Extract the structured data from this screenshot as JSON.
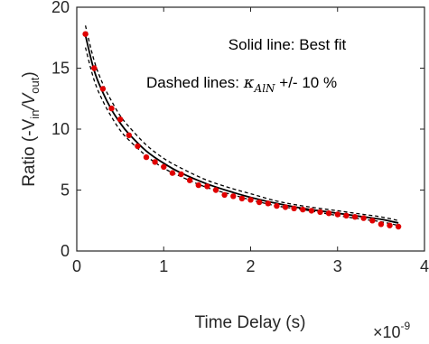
{
  "chart_data": {
    "type": "scatter",
    "xlabel": "Time Delay (s)",
    "ylabel_parts": {
      "prefix": "Ratio (-V",
      "sub1": "in",
      "mid": "/V",
      "sub2": "out",
      "suffix": ")"
    },
    "x_exponent_label": "×10",
    "x_exponent_power": "-9",
    "xlim": [
      0,
      4
    ],
    "ylim": [
      0,
      20
    ],
    "xticks": [
      "0",
      "1",
      "2",
      "3",
      "4"
    ],
    "yticks": [
      "0",
      "5",
      "10",
      "15",
      "20"
    ],
    "annotations": {
      "line1": "Solid line: Best fit",
      "line2_prefix": "Dashed lines: ",
      "kappa_symbol": "κ",
      "kappa_sub": "AlN",
      "line2_suffix": " +/- 10 %"
    },
    "colors": {
      "points": "#e00000",
      "fit": "#000000",
      "dashed": "#000000",
      "axis": "#262626"
    },
    "series": [
      {
        "role": "measured",
        "x": [
          0.1,
          0.2,
          0.3,
          0.4,
          0.5,
          0.6,
          0.7,
          0.8,
          0.9,
          1.0,
          1.1,
          1.2,
          1.3,
          1.4,
          1.5,
          1.6,
          1.7,
          1.8,
          1.9,
          2.0,
          2.1,
          2.2,
          2.3,
          2.4,
          2.5,
          2.6,
          2.7,
          2.8,
          2.9,
          3.0,
          3.1,
          3.2,
          3.3,
          3.4,
          3.5,
          3.6,
          3.7
        ],
        "values": [
          17.8,
          15.0,
          13.3,
          11.7,
          10.8,
          9.5,
          8.6,
          7.7,
          7.3,
          6.9,
          6.4,
          6.3,
          5.8,
          5.4,
          5.3,
          5.0,
          4.6,
          4.5,
          4.3,
          4.2,
          4.0,
          3.9,
          3.7,
          3.6,
          3.5,
          3.4,
          3.3,
          3.2,
          3.1,
          3.0,
          2.9,
          2.8,
          2.7,
          2.5,
          2.2,
          2.1,
          2.0
        ]
      },
      {
        "role": "best-fit",
        "x": [
          0.1,
          0.2,
          0.3,
          0.4,
          0.5,
          0.6,
          0.8,
          1.0,
          1.2,
          1.5,
          1.8,
          2.0,
          2.3,
          2.6,
          3.0,
          3.3,
          3.5,
          3.7
        ],
        "values": [
          17.7,
          14.8,
          13.0,
          11.6,
          10.5,
          9.6,
          8.2,
          7.2,
          6.4,
          5.5,
          4.8,
          4.4,
          3.9,
          3.5,
          3.1,
          2.8,
          2.6,
          2.3
        ]
      },
      {
        "role": "upper-bound",
        "x": [
          0.1,
          0.2,
          0.3,
          0.4,
          0.5,
          0.6,
          0.8,
          1.0,
          1.2,
          1.5,
          1.8,
          2.0,
          2.3,
          2.6,
          3.0,
          3.3,
          3.5,
          3.7
        ],
        "values": [
          18.5,
          15.6,
          13.7,
          12.3,
          11.1,
          10.2,
          8.7,
          7.6,
          6.8,
          5.8,
          5.1,
          4.7,
          4.1,
          3.7,
          3.3,
          3.0,
          2.8,
          2.5
        ]
      },
      {
        "role": "lower-bound",
        "x": [
          0.1,
          0.2,
          0.3,
          0.4,
          0.5,
          0.6,
          0.8,
          1.0,
          1.2,
          1.5,
          1.8,
          2.0,
          2.3,
          2.6,
          3.0,
          3.3,
          3.5,
          3.7
        ],
        "values": [
          16.7,
          14.0,
          12.3,
          11.0,
          9.9,
          9.1,
          7.8,
          6.8,
          6.1,
          5.2,
          4.6,
          4.2,
          3.7,
          3.4,
          2.9,
          2.6,
          2.4,
          2.1
        ]
      }
    ]
  }
}
